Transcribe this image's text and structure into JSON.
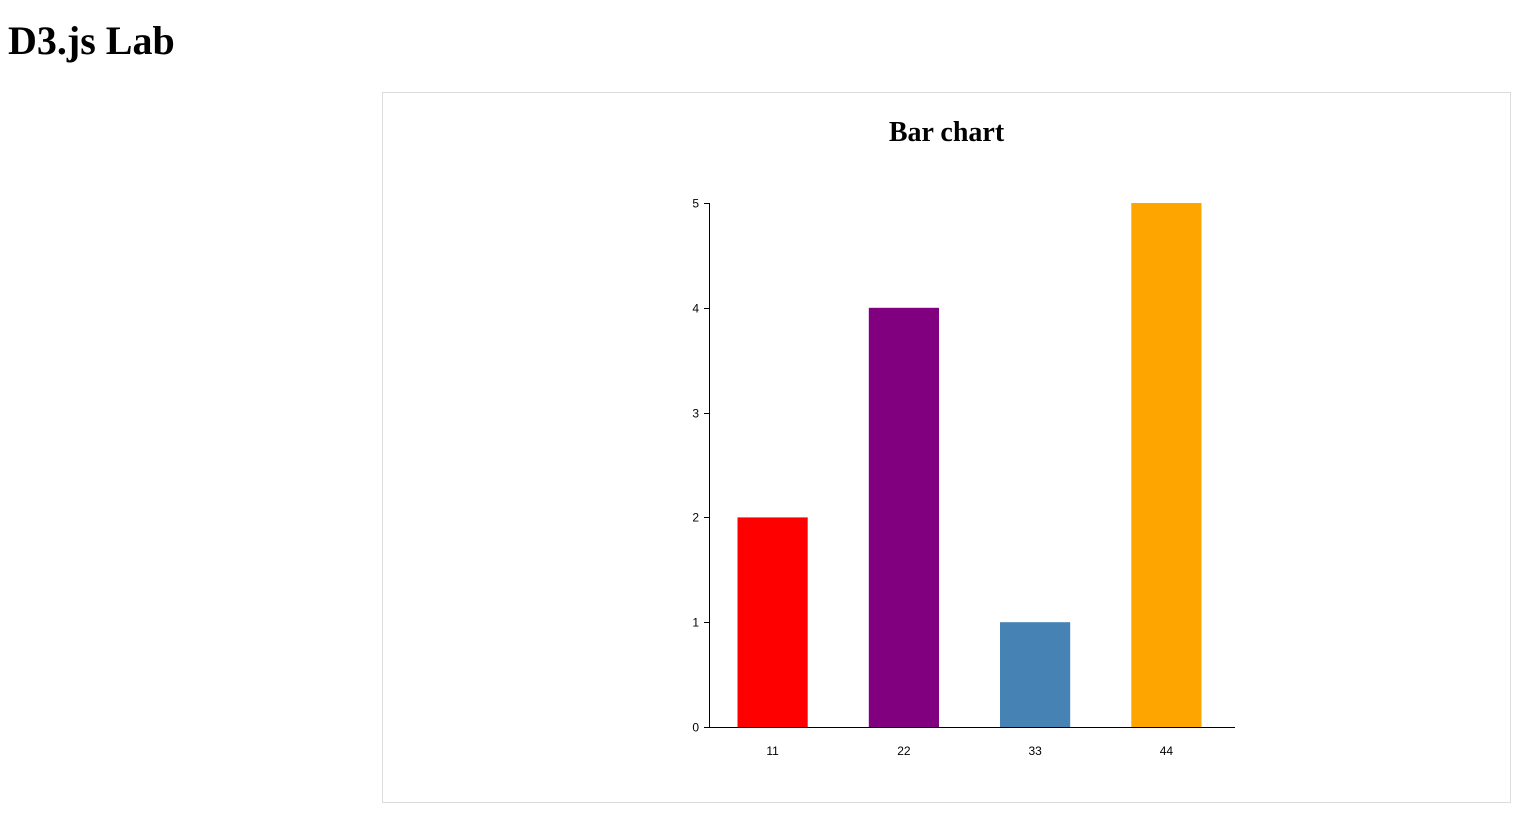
{
  "page": {
    "heading": "D3.js Lab"
  },
  "chart_data": {
    "type": "bar",
    "title": "Bar chart",
    "categories": [
      "11",
      "22",
      "33",
      "44"
    ],
    "values": [
      2,
      4,
      1,
      5
    ],
    "colors": [
      "#ff0000",
      "#800080",
      "#4682b4",
      "#ffa500"
    ],
    "yticks": [
      0,
      1,
      2,
      3,
      4,
      5
    ],
    "ylim": [
      0,
      5
    ],
    "xlabel": "",
    "ylabel": "",
    "grid": false,
    "legend": "none"
  }
}
